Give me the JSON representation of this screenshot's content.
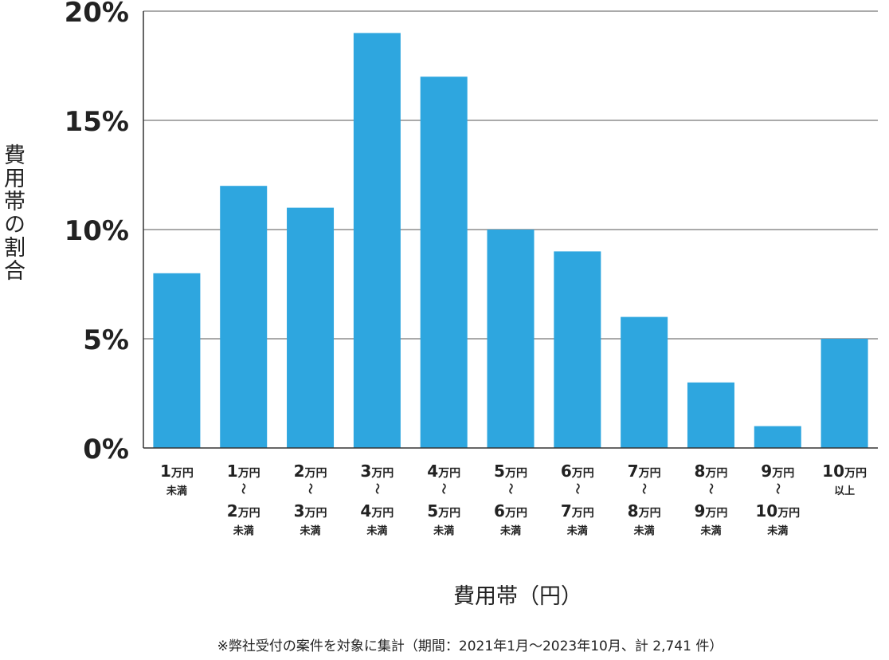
{
  "chart_data": {
    "type": "bar",
    "title": "",
    "ylabel": "費用帯の割合",
    "xlabel": "費用帯（円）",
    "footnote": "※弊社受付の案件を対象に集計（期間：2021年1月～2023年10月、計 2,741 件）",
    "ylim": [
      0,
      20
    ],
    "yticks": [
      {
        "value": 0,
        "label": "0%"
      },
      {
        "value": 5,
        "label": "5%"
      },
      {
        "value": 10,
        "label": "10%"
      },
      {
        "value": 15,
        "label": "15%"
      },
      {
        "value": 20,
        "label": "20%"
      }
    ],
    "grid": true,
    "legend": "none",
    "bar_color": "#2ea6df",
    "categories": [
      {
        "lines": [
          {
            "n": "1",
            "u": "万円"
          },
          {
            "t": "未満"
          }
        ]
      },
      {
        "lines": [
          {
            "n": "1",
            "u": "万円"
          },
          {
            "t": "～"
          },
          {
            "n": "2",
            "u": "万円"
          },
          {
            "t": "未満"
          }
        ]
      },
      {
        "lines": [
          {
            "n": "2",
            "u": "万円"
          },
          {
            "t": "～"
          },
          {
            "n": "3",
            "u": "万円"
          },
          {
            "t": "未満"
          }
        ]
      },
      {
        "lines": [
          {
            "n": "3",
            "u": "万円"
          },
          {
            "t": "～"
          },
          {
            "n": "4",
            "u": "万円"
          },
          {
            "t": "未満"
          }
        ]
      },
      {
        "lines": [
          {
            "n": "4",
            "u": "万円"
          },
          {
            "t": "～"
          },
          {
            "n": "5",
            "u": "万円"
          },
          {
            "t": "未満"
          }
        ]
      },
      {
        "lines": [
          {
            "n": "5",
            "u": "万円"
          },
          {
            "t": "～"
          },
          {
            "n": "6",
            "u": "万円"
          },
          {
            "t": "未満"
          }
        ]
      },
      {
        "lines": [
          {
            "n": "6",
            "u": "万円"
          },
          {
            "t": "～"
          },
          {
            "n": "7",
            "u": "万円"
          },
          {
            "t": "未満"
          }
        ]
      },
      {
        "lines": [
          {
            "n": "7",
            "u": "万円"
          },
          {
            "t": "～"
          },
          {
            "n": "8",
            "u": "万円"
          },
          {
            "t": "未満"
          }
        ]
      },
      {
        "lines": [
          {
            "n": "8",
            "u": "万円"
          },
          {
            "t": "～"
          },
          {
            "n": "9",
            "u": "万円"
          },
          {
            "t": "未満"
          }
        ]
      },
      {
        "lines": [
          {
            "n": "9",
            "u": "万円"
          },
          {
            "t": "～"
          },
          {
            "n": "10",
            "u": "万円"
          },
          {
            "t": "未満"
          }
        ]
      },
      {
        "lines": [
          {
            "n": "10",
            "u": "万円"
          },
          {
            "t": "以上"
          }
        ]
      }
    ],
    "values": [
      8,
      12,
      11,
      19,
      17,
      10,
      9,
      6,
      3,
      1,
      5
    ]
  }
}
